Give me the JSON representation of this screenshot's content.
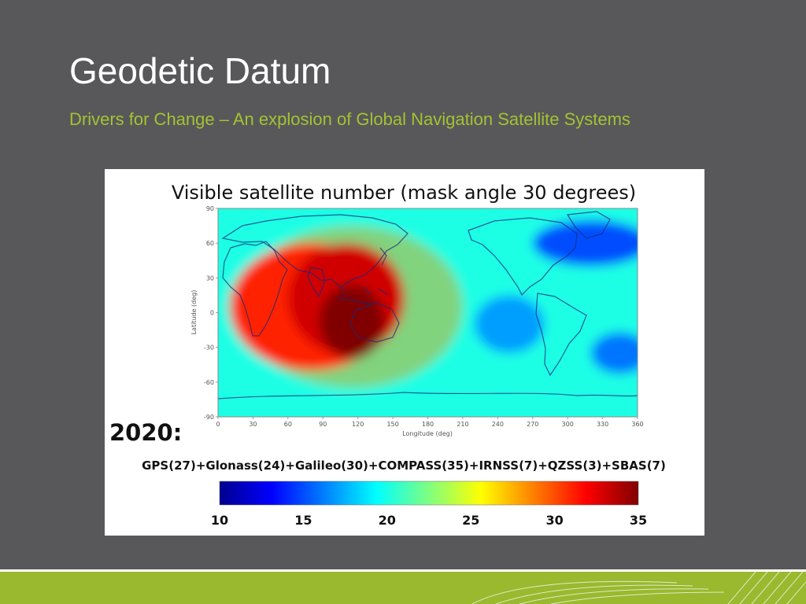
{
  "slide": {
    "title": "Geodetic Datum",
    "subtitle": "Drivers for Change – An explosion of Global Navigation Satellite Systems"
  },
  "colors": {
    "background": "#58585a",
    "accent": "#a3c232",
    "footer": "#9ab92f"
  },
  "chart_data": {
    "type": "heatmap",
    "title": "Visible satellite number (mask angle 30 degrees)",
    "year_label": "2020:",
    "constellations": "GPS(27)+Glonass(24)+Galileo(30)+COMPASS(35)+IRNSS(7)+QZSS(3)+SBAS(7)",
    "xlabel": "Longitude (deg)",
    "ylabel": "Latitude (deg)",
    "xlim": [
      0,
      360
    ],
    "ylim": [
      -90,
      90
    ],
    "x_ticks": [
      "0",
      "30",
      "60",
      "90",
      "120",
      "150",
      "180",
      "210",
      "240",
      "270",
      "300",
      "330",
      "360"
    ],
    "y_ticks": [
      "90",
      "60",
      "30",
      "0",
      "-30",
      "-60",
      "-90"
    ],
    "colorbar": {
      "range": [
        10,
        35
      ],
      "ticks": [
        "10",
        "15",
        "20",
        "25",
        "30",
        "35"
      ],
      "colormap": "jet"
    },
    "regions": [
      {
        "name": "background",
        "lon": 180,
        "lat": 0,
        "value": 20
      },
      {
        "name": "asia-pacific-peak",
        "lon": 115,
        "lat": -8,
        "value": 35
      },
      {
        "name": "asia-pacific-core",
        "lon": 110,
        "lat": 12,
        "value": 33
      },
      {
        "name": "indian-ocean",
        "lon": 80,
        "lat": 5,
        "value": 31
      },
      {
        "name": "north-atlantic-low",
        "lon": 320,
        "lat": 60,
        "value": 15
      },
      {
        "name": "pacific-low",
        "lon": 250,
        "lat": -10,
        "value": 17
      },
      {
        "name": "south-atlantic-low",
        "lon": 345,
        "lat": -35,
        "value": 16
      }
    ]
  }
}
